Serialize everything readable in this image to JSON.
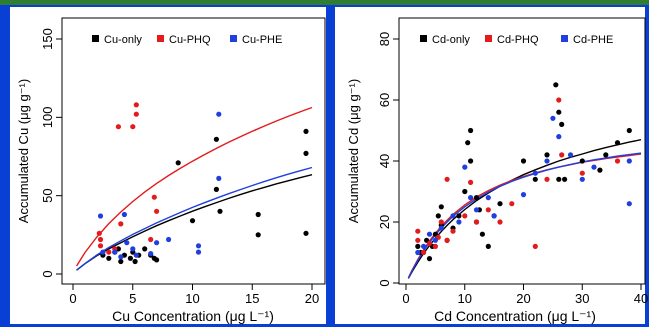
{
  "colors": {
    "frame": "#0a3fd6",
    "top_rule": "#2e7d32",
    "black": "#000000",
    "red": "#e41a1c",
    "blue": "#1f3fe0"
  },
  "chart_data": [
    {
      "type": "scatter",
      "title": "",
      "xlabel": "Cu Concentration (μg L⁻¹)",
      "ylabel": "Accumulated Cu (μg g⁻¹)",
      "xlim": [
        0,
        20
      ],
      "ylim": [
        0,
        150
      ],
      "xticks": [
        0,
        5,
        10,
        15,
        20
      ],
      "yticks": [
        0,
        50,
        100,
        150
      ],
      "legend": {
        "placement": "top",
        "entries": [
          "Cu-only",
          "Cu-PHQ",
          "Cu-PHE"
        ]
      },
      "series": [
        {
          "name": "Cu-only",
          "color": "#000000",
          "points": [
            [
              2.5,
              12
            ],
            [
              3.0,
              10
            ],
            [
              3.5,
              14
            ],
            [
              3.8,
              16
            ],
            [
              4.0,
              8
            ],
            [
              4.3,
              12
            ],
            [
              4.8,
              10
            ],
            [
              5.0,
              14
            ],
            [
              5.2,
              8
            ],
            [
              5.5,
              12
            ],
            [
              6.0,
              16
            ],
            [
              6.5,
              12
            ],
            [
              6.8,
              10
            ],
            [
              7.0,
              9
            ],
            [
              8.8,
              71
            ],
            [
              10.0,
              34
            ],
            [
              12.0,
              86
            ],
            [
              12.0,
              54
            ],
            [
              12.3,
              40
            ],
            [
              15.5,
              38
            ],
            [
              15.5,
              25
            ],
            [
              19.5,
              91
            ],
            [
              19.5,
              77
            ],
            [
              19.5,
              26
            ]
          ],
          "fit": [
            [
              0.3,
              2.4
            ],
            [
              1,
              6.6
            ],
            [
              2,
              11.7
            ],
            [
              3,
              16.0
            ],
            [
              4,
              20.0
            ],
            [
              5,
              23.8
            ],
            [
              6,
              27.4
            ],
            [
              7,
              30.8
            ],
            [
              8,
              34.0
            ],
            [
              9,
              37.1
            ],
            [
              10,
              40.1
            ],
            [
              11,
              42.9
            ],
            [
              12,
              45.6
            ],
            [
              13,
              48.2
            ],
            [
              14,
              50.7
            ],
            [
              15,
              53.1
            ],
            [
              16,
              55.3
            ],
            [
              17,
              57.5
            ],
            [
              18,
              59.5
            ],
            [
              19,
              61.5
            ],
            [
              20,
              63.4
            ]
          ]
        },
        {
          "name": "Cu-PHQ",
          "color": "#e41a1c",
          "points": [
            [
              2.2,
              26
            ],
            [
              2.3,
              22
            ],
            [
              2.3,
              18
            ],
            [
              3.0,
              14
            ],
            [
              3.5,
              16
            ],
            [
              3.8,
              94
            ],
            [
              4.0,
              32
            ],
            [
              5.0,
              94
            ],
            [
              5.3,
              108
            ],
            [
              5.3,
              102
            ],
            [
              6.5,
              22
            ],
            [
              6.8,
              49
            ],
            [
              7.0,
              40
            ]
          ],
          "fit": [
            [
              0.3,
              5.1
            ],
            [
              1,
              13.7
            ],
            [
              2,
              23.6
            ],
            [
              3,
              32.2
            ],
            [
              4,
              39.6
            ],
            [
              5,
              46.3
            ],
            [
              6,
              52.3
            ],
            [
              7,
              57.8
            ],
            [
              8,
              62.9
            ],
            [
              9,
              67.6
            ],
            [
              10,
              72.0
            ],
            [
              11,
              76.2
            ],
            [
              12,
              80.2
            ],
            [
              13,
              84.0
            ],
            [
              14,
              87.6
            ],
            [
              15,
              91.1
            ],
            [
              16,
              94.4
            ],
            [
              17,
              97.6
            ],
            [
              18,
              100.6
            ],
            [
              19,
              103.5
            ],
            [
              20,
              106.3
            ]
          ]
        },
        {
          "name": "Cu-PHE",
          "color": "#1f3fe0",
          "points": [
            [
              2.3,
              37
            ],
            [
              2.5,
              14
            ],
            [
              3.5,
              14
            ],
            [
              4.0,
              11
            ],
            [
              4.3,
              38
            ],
            [
              4.5,
              20
            ],
            [
              5.0,
              16
            ],
            [
              5.3,
              12
            ],
            [
              6.5,
              13
            ],
            [
              7.0,
              20
            ],
            [
              8.0,
              22
            ],
            [
              10.5,
              18
            ],
            [
              10.5,
              14
            ],
            [
              12.2,
              102
            ],
            [
              12.2,
              61
            ]
          ],
          "fit": [
            [
              0.3,
              2.4
            ],
            [
              1,
              6.7
            ],
            [
              2,
              12.2
            ],
            [
              3,
              16.9
            ],
            [
              4,
              21.2
            ],
            [
              5,
              25.3
            ],
            [
              6,
              29.0
            ],
            [
              7,
              32.6
            ],
            [
              8,
              36.0
            ],
            [
              9,
              39.3
            ],
            [
              10,
              42.5
            ],
            [
              11,
              45.5
            ],
            [
              12,
              48.4
            ],
            [
              13,
              51.2
            ],
            [
              14,
              53.9
            ],
            [
              15,
              56.5
            ],
            [
              16,
              59.0
            ],
            [
              17,
              61.4
            ],
            [
              18,
              63.7
            ],
            [
              19,
              65.9
            ],
            [
              20,
              68.0
            ]
          ]
        }
      ]
    },
    {
      "type": "scatter",
      "title": "",
      "xlabel": "Cd Concentration (μg L⁻¹)",
      "ylabel": "Accumulated Cd (μg g⁻¹)",
      "xlim": [
        0,
        40
      ],
      "ylim": [
        0,
        80
      ],
      "xticks": [
        0,
        10,
        20,
        30,
        40
      ],
      "yticks": [
        0,
        20,
        40,
        60,
        80
      ],
      "legend": {
        "placement": "top",
        "entries": [
          "Cd-only",
          "Cd-PHQ",
          "Cd-PHE"
        ]
      },
      "series": [
        {
          "name": "Cd-only",
          "color": "#000000",
          "points": [
            [
              2,
              12
            ],
            [
              2.5,
              10
            ],
            [
              3.5,
              14
            ],
            [
              4,
              8
            ],
            [
              4.5,
              12
            ],
            [
              5,
              16
            ],
            [
              5.5,
              22
            ],
            [
              6,
              25
            ],
            [
              6,
              19
            ],
            [
              7,
              14
            ],
            [
              8,
              18
            ],
            [
              9,
              22
            ],
            [
              10,
              30
            ],
            [
              10.5,
              46
            ],
            [
              11,
              50
            ],
            [
              11,
              40
            ],
            [
              12,
              28
            ],
            [
              12,
              20
            ],
            [
              12.5,
              24
            ],
            [
              13,
              16
            ],
            [
              14,
              12
            ],
            [
              15,
              22
            ],
            [
              16,
              26
            ],
            [
              20,
              40
            ],
            [
              22,
              34
            ],
            [
              24,
              42
            ],
            [
              25.5,
              65
            ],
            [
              26,
              56
            ],
            [
              26.5,
              52
            ],
            [
              26,
              34
            ],
            [
              27,
              34
            ],
            [
              30,
              40
            ],
            [
              33,
              37
            ],
            [
              34,
              42
            ],
            [
              36,
              46
            ],
            [
              38,
              50
            ]
          ],
          "fit": [
            [
              0.4,
              1.5
            ],
            [
              1,
              3.6
            ],
            [
              2,
              6.8
            ],
            [
              3,
              9.7
            ],
            [
              4,
              12.3
            ],
            [
              5,
              14.7
            ],
            [
              6,
              16.9
            ],
            [
              7,
              18.9
            ],
            [
              8,
              20.8
            ],
            [
              10,
              24.1
            ],
            [
              12,
              27.0
            ],
            [
              14,
              29.5
            ],
            [
              16,
              31.7
            ],
            [
              18,
              33.7
            ],
            [
              20,
              35.5
            ],
            [
              22,
              37.1
            ],
            [
              24,
              38.6
            ],
            [
              26,
              40.0
            ],
            [
              28,
              41.2
            ],
            [
              30,
              42.3
            ],
            [
              32,
              43.4
            ],
            [
              34,
              44.4
            ],
            [
              36,
              45.3
            ],
            [
              38,
              46.2
            ],
            [
              40,
              47.0
            ]
          ]
        },
        {
          "name": "Cd-PHQ",
          "color": "#e41a1c",
          "points": [
            [
              2,
              14
            ],
            [
              2,
              17
            ],
            [
              3,
              10
            ],
            [
              4,
              13
            ],
            [
              5,
              12
            ],
            [
              5.5,
              15
            ],
            [
              6,
              20
            ],
            [
              7,
              14
            ],
            [
              7,
              34
            ],
            [
              8,
              17
            ],
            [
              10,
              22
            ],
            [
              11,
              33
            ],
            [
              12,
              20
            ],
            [
              14,
              24
            ],
            [
              16,
              20
            ],
            [
              18,
              26
            ],
            [
              22,
              12
            ],
            [
              24,
              34
            ],
            [
              26,
              60
            ],
            [
              26.5,
              42
            ],
            [
              30,
              36
            ],
            [
              36,
              40
            ]
          ],
          "fit": [
            [
              0.4,
              1.7
            ],
            [
              1,
              4.1
            ],
            [
              2,
              7.7
            ],
            [
              3,
              10.9
            ],
            [
              4,
              13.8
            ],
            [
              5,
              16.3
            ],
            [
              6,
              18.6
            ],
            [
              7,
              20.6
            ],
            [
              8,
              22.5
            ],
            [
              10,
              25.6
            ],
            [
              12,
              28.2
            ],
            [
              14,
              30.3
            ],
            [
              16,
              32.1
            ],
            [
              18,
              33.6
            ],
            [
              20,
              34.9
            ],
            [
              22,
              36.1
            ],
            [
              24,
              37.1
            ],
            [
              26,
              38.0
            ],
            [
              28,
              38.8
            ],
            [
              30,
              39.6
            ],
            [
              32,
              40.2
            ],
            [
              34,
              40.8
            ],
            [
              36,
              41.3
            ],
            [
              38,
              41.8
            ],
            [
              40,
              42.3
            ]
          ]
        },
        {
          "name": "Cd-PHE",
          "color": "#1f3fe0",
          "points": [
            [
              2,
              10
            ],
            [
              3,
              12
            ],
            [
              4,
              16
            ],
            [
              5,
              14
            ],
            [
              6,
              18
            ],
            [
              8,
              22
            ],
            [
              9,
              20
            ],
            [
              10,
              38
            ],
            [
              11,
              28
            ],
            [
              12,
              24
            ],
            [
              14,
              28
            ],
            [
              15,
              22
            ],
            [
              20,
              29
            ],
            [
              22,
              36
            ],
            [
              24,
              40
            ],
            [
              25,
              54
            ],
            [
              26,
              48
            ],
            [
              28,
              42
            ],
            [
              30,
              34
            ],
            [
              32,
              38
            ],
            [
              38,
              40
            ],
            [
              38,
              26
            ]
          ],
          "fit": [
            [
              0.4,
              1.6
            ],
            [
              1,
              3.9
            ],
            [
              2,
              7.4
            ],
            [
              3,
              10.5
            ],
            [
              4,
              13.3
            ],
            [
              5,
              15.8
            ],
            [
              6,
              18.0
            ],
            [
              7,
              20.0
            ],
            [
              8,
              21.9
            ],
            [
              10,
              25.0
            ],
            [
              12,
              27.6
            ],
            [
              14,
              29.8
            ],
            [
              16,
              31.7
            ],
            [
              18,
              33.3
            ],
            [
              20,
              34.7
            ],
            [
              22,
              35.9
            ],
            [
              24,
              37.0
            ],
            [
              26,
              38.0
            ],
            [
              28,
              38.9
            ],
            [
              30,
              39.7
            ],
            [
              32,
              40.4
            ],
            [
              34,
              41.0
            ],
            [
              36,
              41.6
            ],
            [
              38,
              42.1
            ],
            [
              40,
              42.6
            ]
          ]
        }
      ]
    }
  ]
}
